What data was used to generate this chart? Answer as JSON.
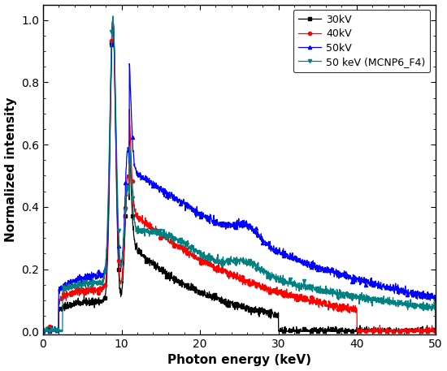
{
  "xlabel": "Photon energy (keV)",
  "ylabel": "Normalized intensity",
  "xlim": [
    0,
    50
  ],
  "ylim": [
    -0.01,
    1.05
  ],
  "xticks": [
    0,
    10,
    20,
    30,
    40,
    50
  ],
  "yticks": [
    0.0,
    0.2,
    0.4,
    0.6,
    0.8,
    1.0
  ],
  "legend_labels": [
    "30kV",
    "40kV",
    "50kV",
    "50 keV (MCNP6_F4)"
  ],
  "line_colors": [
    "black",
    "red",
    "blue",
    "#008080"
  ],
  "markers": [
    "s",
    "o",
    "^",
    "v"
  ],
  "marker_size": 3,
  "figsize": [
    5.5,
    4.57
  ],
  "dpi": 100
}
